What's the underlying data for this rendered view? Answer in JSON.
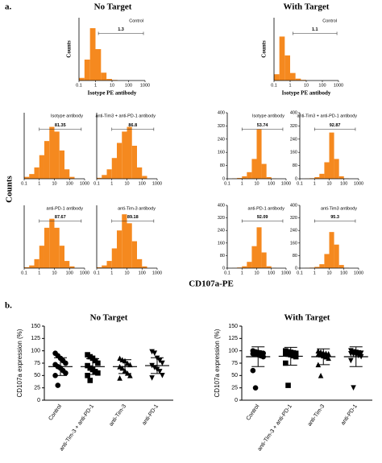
{
  "panel_a": {
    "label": "a.",
    "headings": [
      "No Target",
      "With Target"
    ],
    "y_label": "Counts",
    "x_label": "CD107a-PE"
  },
  "panel_b": {
    "label": "b."
  },
  "chart_data": [
    {
      "type": "histogram",
      "title": "Control",
      "x_label": "Isotype PE antibody",
      "y_label": "Counts",
      "gate_value": 1.3,
      "gate_range": [
        1.5,
        800
      ],
      "log_x": true,
      "color": "#f5891f",
      "bins": [
        0.1,
        0.215,
        0.464,
        1,
        2.15,
        4.64,
        10,
        21.5,
        46.4,
        100,
        215,
        464,
        1000
      ],
      "counts": [
        5,
        40,
        100,
        60,
        15,
        3,
        1,
        0,
        0,
        0,
        0,
        0
      ],
      "xlim": [
        0.1,
        1000
      ],
      "xticks": [
        0.1,
        1,
        10,
        100,
        1000
      ],
      "ylim": [
        0,
        120
      ]
    },
    {
      "type": "histogram",
      "title": "Control",
      "x_label": "Isotype PE antibody",
      "y_label": "Counts",
      "gate_value": 1.1,
      "gate_range": [
        1.5,
        800
      ],
      "log_x": true,
      "color": "#f5891f",
      "bins": [
        0.1,
        0.215,
        0.464,
        1,
        2.15,
        4.64,
        10,
        21.5,
        46.4,
        100,
        215,
        464,
        1000
      ],
      "counts": [
        10,
        70,
        40,
        12,
        3,
        1,
        0,
        0,
        0,
        0,
        0,
        0
      ],
      "xlim": [
        0.1,
        1000
      ],
      "xticks": [
        0.1,
        1,
        10,
        100,
        1000
      ],
      "ylim": [
        0,
        100
      ]
    },
    {
      "type": "histogram",
      "title": "Isotype antibody",
      "gate_value": 81.35,
      "gate_range": [
        1,
        600
      ],
      "log_x": true,
      "color": "#f5891f",
      "bins": [
        0.1,
        0.215,
        0.464,
        1,
        2.15,
        4.64,
        10,
        21.5,
        46.4,
        100,
        215,
        464,
        1000
      ],
      "counts": [
        2,
        5,
        12,
        25,
        40,
        55,
        50,
        30,
        10,
        2,
        0,
        0
      ],
      "xlim": [
        0.1,
        1000
      ],
      "xticks": [
        0.1,
        1,
        10,
        100,
        1000
      ],
      "ylim": [
        0,
        70
      ]
    },
    {
      "type": "histogram",
      "title": "anti-Tim3 + anti-PD-1 antibody",
      "gate_value": 86.8,
      "gate_range": [
        1,
        600
      ],
      "log_x": true,
      "color": "#f5891f",
      "bins": [
        0.1,
        0.215,
        0.464,
        1,
        2.15,
        4.64,
        10,
        21.5,
        46.4,
        100,
        215,
        464,
        1000
      ],
      "counts": [
        1,
        4,
        10,
        22,
        38,
        50,
        55,
        35,
        12,
        3,
        0,
        0
      ],
      "xlim": [
        0.1,
        1000
      ],
      "xticks": [
        0.1,
        1,
        10,
        100,
        1000
      ],
      "ylim": [
        0,
        70
      ]
    },
    {
      "type": "histogram",
      "title": "anti-PD-1 antibody",
      "gate_value": 87.67,
      "gate_range": [
        1,
        600
      ],
      "log_x": true,
      "color": "#f5891f",
      "bins": [
        0.1,
        0.215,
        0.464,
        1,
        2.15,
        4.64,
        10,
        21.5,
        46.4,
        100,
        215,
        464,
        1000
      ],
      "counts": [
        1,
        3,
        10,
        25,
        45,
        55,
        45,
        25,
        8,
        2,
        0,
        0
      ],
      "xlim": [
        0.1,
        1000
      ],
      "xticks": [
        0.1,
        1,
        10,
        100,
        1000
      ],
      "ylim": [
        0,
        70
      ]
    },
    {
      "type": "histogram",
      "title": "anti-Tim-3 antibody",
      "gate_value": 89.18,
      "gate_range": [
        1,
        600
      ],
      "log_x": true,
      "color": "#f5891f",
      "bins": [
        0.1,
        0.215,
        0.464,
        1,
        2.15,
        4.64,
        10,
        21.5,
        46.4,
        100,
        215,
        464,
        1000
      ],
      "counts": [
        1,
        3,
        8,
        22,
        42,
        60,
        50,
        30,
        10,
        2,
        0,
        0
      ],
      "xlim": [
        0.1,
        1000
      ],
      "xticks": [
        0.1,
        1,
        10,
        100,
        1000
      ],
      "ylim": [
        0,
        70
      ]
    },
    {
      "type": "histogram",
      "title": "Isotype antibody",
      "gate_value": 53.74,
      "gate_range": [
        1,
        600
      ],
      "log_x": true,
      "color": "#f5891f",
      "bins": [
        0.1,
        0.215,
        0.464,
        1,
        2.15,
        4.64,
        10,
        21.5,
        46.4,
        100,
        215,
        464,
        1000
      ],
      "counts": [
        0,
        2,
        5,
        15,
        40,
        120,
        300,
        90,
        10,
        1,
        0,
        0
      ],
      "xlim": [
        0.1,
        1000
      ],
      "xticks": [
        0.1,
        1,
        10,
        100,
        1000
      ],
      "ylim": [
        0,
        400
      ],
      "yticks": [
        0,
        80,
        160,
        240,
        320,
        400
      ]
    },
    {
      "type": "histogram",
      "title": "anti-Tim3 + anti-PD-1 antibody",
      "gate_value": 92.87,
      "gate_range": [
        1,
        600
      ],
      "log_x": true,
      "color": "#f5891f",
      "bins": [
        0.1,
        0.215,
        0.464,
        1,
        2.15,
        4.64,
        10,
        21.5,
        46.4,
        100,
        215,
        464,
        1000
      ],
      "counts": [
        0,
        1,
        3,
        10,
        30,
        100,
        280,
        120,
        15,
        2,
        0,
        0
      ],
      "xlim": [
        0.1,
        1000
      ],
      "xticks": [
        0.1,
        1,
        10,
        100,
        1000
      ],
      "ylim": [
        0,
        400
      ],
      "yticks": [
        0,
        80,
        160,
        240,
        320,
        400
      ]
    },
    {
      "type": "histogram",
      "title": "anti-PD-1 antibody",
      "gate_value": 92.09,
      "gate_range": [
        1,
        600
      ],
      "log_x": true,
      "color": "#f5891f",
      "bins": [
        0.1,
        0.215,
        0.464,
        1,
        2.15,
        4.64,
        10,
        21.5,
        46.4,
        100,
        215,
        464,
        1000
      ],
      "counts": [
        0,
        1,
        4,
        12,
        40,
        140,
        260,
        100,
        12,
        1,
        0,
        0
      ],
      "xlim": [
        0.1,
        1000
      ],
      "xticks": [
        0.1,
        1,
        10,
        100,
        1000
      ],
      "ylim": [
        0,
        400
      ],
      "yticks": [
        0,
        80,
        160,
        240,
        320,
        400
      ]
    },
    {
      "type": "histogram",
      "title": "anti-Tim3 antibody",
      "gate_value": 95.3,
      "gate_range": [
        1,
        600
      ],
      "log_x": true,
      "color": "#f5891f",
      "bins": [
        0.1,
        0.215,
        0.464,
        1,
        2.15,
        4.64,
        10,
        21.5,
        46.4,
        100,
        215,
        464,
        1000
      ],
      "counts": [
        0,
        1,
        3,
        8,
        25,
        90,
        230,
        150,
        20,
        2,
        0,
        0
      ],
      "xlim": [
        0.1,
        1000
      ],
      "xticks": [
        0.1,
        1,
        10,
        100,
        1000
      ],
      "ylim": [
        0,
        400
      ],
      "yticks": [
        0,
        80,
        160,
        240,
        320,
        400
      ]
    },
    {
      "type": "dot",
      "title": "No Target",
      "y_label": "CD107a expression (%)",
      "color": "#000000",
      "categories": [
        "Control",
        "anti-Tim-3 + anti-PD-1",
        "anti-Tim-3",
        "anti-PD-1"
      ],
      "groups": [
        {
          "marker": "circle",
          "values": [
            95,
            90,
            85,
            80,
            75,
            72,
            68,
            65,
            60,
            55,
            50,
            30
          ],
          "mean": 68,
          "sd": 18
        },
        {
          "marker": "square",
          "values": [
            92,
            88,
            85,
            80,
            75,
            70,
            65,
            62,
            58,
            55,
            50,
            40
          ],
          "mean": 68,
          "sd": 16
        },
        {
          "marker": "triangle",
          "values": [
            85,
            82,
            80,
            75,
            72,
            68,
            65,
            60,
            55,
            50,
            45
          ],
          "mean": 68,
          "sd": 14
        },
        {
          "marker": "triangle-down",
          "values": [
            98,
            95,
            85,
            80,
            75,
            70,
            66,
            62,
            58,
            50,
            45
          ],
          "mean": 70,
          "sd": 16
        }
      ],
      "ylim": [
        0,
        150
      ],
      "yticks": [
        0,
        25,
        50,
        75,
        100,
        125,
        150
      ]
    },
    {
      "type": "dot",
      "title": "With Target",
      "y_label": "CD107a expression (%)",
      "color": "#000000",
      "categories": [
        "Control",
        "anti-Tim-3 + anti-PD-1",
        "anti-Tim-3",
        "anti-PD-1"
      ],
      "groups": [
        {
          "marker": "circle",
          "values": [
            100,
            98,
            97,
            96,
            95,
            94,
            93,
            92,
            90,
            88,
            60,
            25
          ],
          "mean": 88,
          "sd": 20
        },
        {
          "marker": "square",
          "values": [
            100,
            98,
            97,
            96,
            95,
            94,
            93,
            92,
            90,
            88,
            75,
            30
          ],
          "mean": 89,
          "sd": 18
        },
        {
          "marker": "triangle",
          "values": [
            100,
            98,
            96,
            95,
            94,
            93,
            92,
            90,
            88,
            85,
            72,
            50
          ],
          "mean": 88,
          "sd": 16
        },
        {
          "marker": "triangle-down",
          "values": [
            100,
            98,
            97,
            96,
            95,
            94,
            93,
            92,
            90,
            88,
            80,
            25
          ],
          "mean": 88,
          "sd": 20
        }
      ],
      "ylim": [
        0,
        150
      ],
      "yticks": [
        0,
        25,
        50,
        75,
        100,
        125,
        150
      ]
    }
  ]
}
